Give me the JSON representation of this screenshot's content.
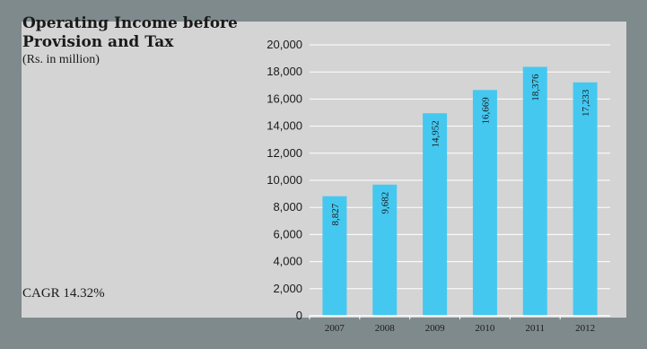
{
  "chart_data": {
    "type": "bar",
    "title": "Operating Income before Provision and Tax",
    "subtitle": "(Rs. in million)",
    "annotation": "CAGR 14.32%",
    "categories": [
      "2007",
      "2008",
      "2009",
      "2010",
      "2011",
      "2012"
    ],
    "values": [
      8827,
      9682,
      14952,
      16669,
      18376,
      17233
    ],
    "value_labels": [
      "8,827",
      "9,682",
      "14,952",
      "16,669",
      "18,376",
      "17,233"
    ],
    "yticks": [
      "0",
      "2,000",
      "4,000",
      "6,000",
      "8,000",
      "10,000",
      "12,000",
      "14,000",
      "16,000",
      "18,000",
      "20,000"
    ],
    "ylim": [
      0,
      20000
    ],
    "ystep": 2000,
    "grid": true,
    "colors": {
      "bar": "#45c8f0",
      "grid": "#ffffff",
      "background": "#d4d4d4",
      "frame": "#7f8a8c"
    }
  }
}
